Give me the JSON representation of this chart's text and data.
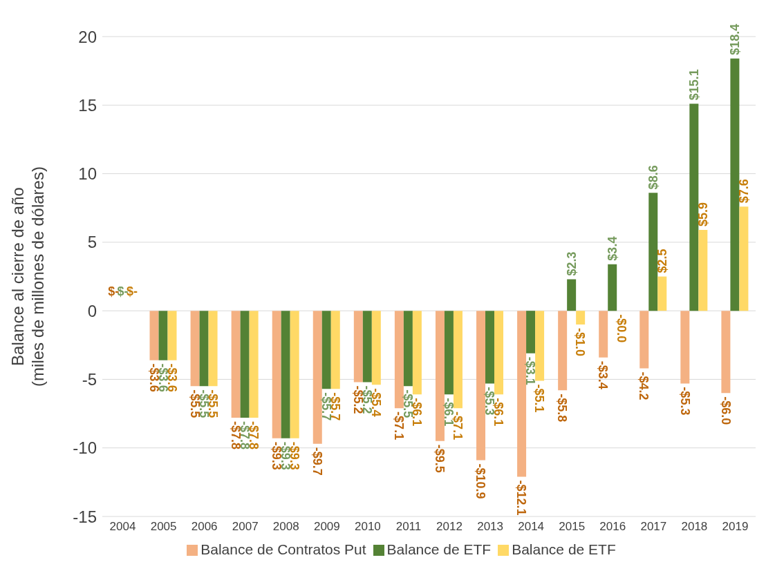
{
  "chart_data": {
    "type": "bar",
    "ylabel": "Balance al cierre de año\n(miles de millones de dólares)",
    "categories": [
      "2004",
      "2005",
      "2006",
      "2007",
      "2008",
      "2009",
      "2010",
      "2011",
      "2012",
      "2013",
      "2014",
      "2015",
      "2016",
      "2017",
      "2018",
      "2019"
    ],
    "series": [
      {
        "name": "Balance de Contratos Put",
        "color": "#f4b183",
        "values": [
          0,
          -3.6,
          -5.5,
          -7.8,
          -9.3,
          -9.7,
          -5.2,
          -7.1,
          -9.5,
          -10.9,
          -12.1,
          -5.8,
          -3.4,
          -4.2,
          -5.3,
          -6.0
        ],
        "value_labels": [
          "$-",
          "-$3.6",
          "-$5.5",
          "-$7.8",
          "-$9.3",
          "-$9.7",
          "-$5.2",
          "-$7.1",
          "-$9.5",
          "-$10.9",
          "-$12.1",
          "-$5.8",
          "-$3.4",
          "-$4.2",
          "-$5.3",
          "-$6.0"
        ]
      },
      {
        "name": "Balance de ETF",
        "color": "#548235",
        "values": [
          0,
          -3.6,
          -5.5,
          -7.8,
          -9.3,
          -5.7,
          -5.2,
          -5.5,
          -6.1,
          -5.3,
          -3.1,
          2.3,
          3.4,
          8.6,
          15.1,
          18.4
        ],
        "value_labels": [
          "$-",
          "-$3.6",
          "-$5.5",
          "-$7.8",
          "-$9.3",
          "-$5.7",
          "-$5.2",
          "-$5.5",
          "-$6.1",
          "-$5.3",
          "-$3.1",
          "$2.3",
          "$3.4",
          "$8.6",
          "$15.1",
          "$18.4"
        ]
      },
      {
        "name": "Balance de ETF",
        "color": "#ffd966",
        "values": [
          0,
          -3.6,
          -5.5,
          -7.8,
          -9.3,
          -5.7,
          -5.4,
          -6.1,
          -7.1,
          -6.1,
          -5.1,
          -1.0,
          0,
          2.5,
          5.9,
          7.6
        ],
        "value_labels": [
          "$-",
          "-$3.6",
          "-$5.5",
          "-$7.8",
          "-$9.3",
          "-$5.7",
          "-$5.4",
          "-$6.1",
          "-$7.1",
          "-$6.1",
          "-$5.1",
          "-$1.0",
          "-$0.0",
          "$2.5",
          "$5.9",
          "$7.6"
        ]
      }
    ],
    "ylim": [
      -15,
      20
    ],
    "yticks": [
      -15,
      -10,
      -5,
      0,
      5,
      10,
      15,
      20
    ],
    "grid": "y",
    "legend": "bottom"
  }
}
